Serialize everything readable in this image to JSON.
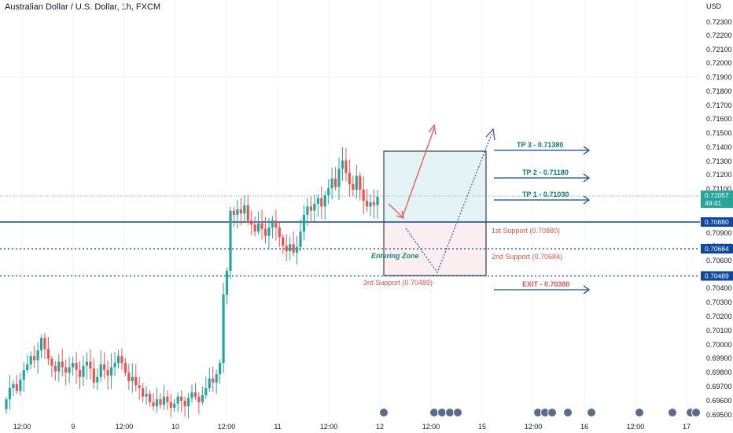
{
  "header": {
    "title": "Australian Dollar / U.S. Dollar, 1h, FXCM",
    "currency": "USD"
  },
  "colors": {
    "up": "#26a69a",
    "down": "#ef5350",
    "blue": "#0d47a1",
    "box_green": "#e4f4f6",
    "box_red": "#fbeeee",
    "tp_text": "#0f7a73",
    "support_text": "#e5534b",
    "entering_text": "#0f8a7c",
    "price_badge": "#26a69a",
    "grid": "#f0f3fa"
  },
  "chart_data": {
    "type": "candlestick",
    "title": "Australian Dollar / U.S. Dollar, 1h, FXCM",
    "ylim": [
      0.6946,
      0.7239
    ],
    "y_ticks": [
      "0.72300",
      "0.72200",
      "0.72100",
      "0.72000",
      "0.71900",
      "0.71800",
      "0.71700",
      "0.71600",
      "0.71500",
      "0.71400",
      "0.71300",
      "0.71200",
      "0.71100",
      "0.70900",
      "0.70800",
      "0.70600",
      "0.70400",
      "0.70300",
      "0.70200",
      "0.70100",
      "0.70000",
      "0.69900",
      "0.69800",
      "0.69700",
      "0.69600",
      "0.69500"
    ],
    "x_ticks": [
      "12:00",
      "9",
      "12:00",
      "10",
      "12:00",
      "11",
      "12:00",
      "12",
      "12:00",
      "15",
      "12:00",
      "16",
      "12:00",
      "17"
    ],
    "candles_close": [
      0.696,
      0.6968,
      0.6971,
      0.6966,
      0.6974,
      0.6981,
      0.6985,
      0.6991,
      0.6988,
      0.6995,
      0.7004,
      0.6996,
      0.6989,
      0.6984,
      0.698,
      0.6987,
      0.6983,
      0.6979,
      0.6983,
      0.6986,
      0.6981,
      0.6976,
      0.6984,
      0.6987,
      0.6982,
      0.6972,
      0.6976,
      0.6985,
      0.6981,
      0.6977,
      0.6983,
      0.6986,
      0.6991,
      0.6986,
      0.6979,
      0.6973,
      0.6976,
      0.697,
      0.6968,
      0.6962,
      0.6964,
      0.6958,
      0.6955,
      0.696,
      0.6956,
      0.6962,
      0.6958,
      0.6954,
      0.6957,
      0.6962,
      0.6959,
      0.6955,
      0.6961,
      0.6965,
      0.6962,
      0.6958,
      0.6963,
      0.6968,
      0.6975,
      0.6972,
      0.6978,
      0.6986,
      0.7035,
      0.7052,
      0.7095,
      0.7092,
      0.7096,
      0.7093,
      0.7099,
      0.7088,
      0.7085,
      0.708,
      0.7086,
      0.7082,
      0.7077,
      0.7083,
      0.7088,
      0.7083,
      0.7076,
      0.707,
      0.7066,
      0.7071,
      0.7065,
      0.7069,
      0.708,
      0.7092,
      0.7098,
      0.7095,
      0.71,
      0.7104,
      0.7098,
      0.7106,
      0.7111,
      0.7118,
      0.7112,
      0.7125,
      0.7131,
      0.7122,
      0.7114,
      0.711,
      0.712,
      0.711,
      0.7102,
      0.7098,
      0.7101,
      0.7099,
      0.7105
    ],
    "last_price": "0.71057",
    "countdown": "49:41",
    "levels": [
      {
        "value": 0.7088,
        "label": "0.70880",
        "style": "solid"
      },
      {
        "value": 0.70684,
        "label": "0.70684",
        "style": "dotted"
      },
      {
        "value": 0.70489,
        "label": "0.70489",
        "style": "dotted"
      }
    ],
    "annotations": {
      "tp3": "TP 3 - 0.71380",
      "tp2": "TP 2 - 0.71180",
      "tp1": "TP 1 - 0.71030",
      "exit": "EXIT - 0.70380",
      "support1": "1st Support (0.70880)",
      "support2": "2nd Support (0.70684)",
      "support3": "3rd Support (0.70489)",
      "entering_zone": "Entering Zone"
    }
  }
}
